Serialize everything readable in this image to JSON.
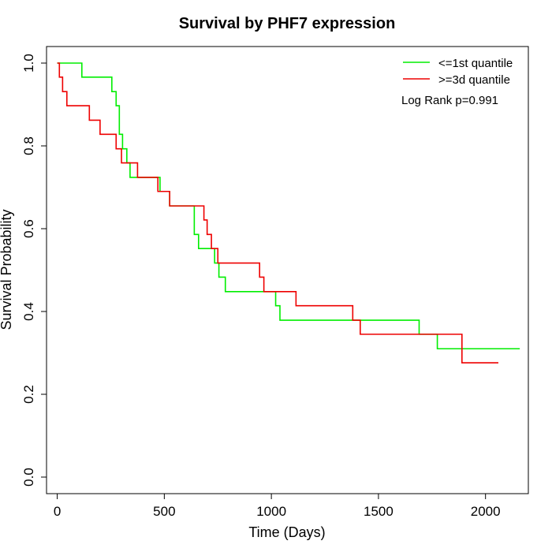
{
  "chart_data": {
    "type": "line",
    "step": true,
    "title": "Survival by PHF7 expression",
    "xlabel": "Time (Days)",
    "ylabel": "Survival Probability",
    "xlim": [
      -50,
      2200
    ],
    "ylim": [
      -0.04,
      1.04
    ],
    "xticks": [
      0,
      500,
      1000,
      1500,
      2000
    ],
    "yticks": [
      0.0,
      0.2,
      0.4,
      0.6,
      0.8,
      1.0
    ],
    "xtick_labels": [
      "0",
      "500",
      "1000",
      "1500",
      "2000"
    ],
    "ytick_labels": [
      "0.0",
      "0.2",
      "0.4",
      "0.6",
      "0.8",
      "1.0"
    ],
    "grid": false,
    "legend_position": "top-right",
    "annotation": "Log Rank p=0.991",
    "series": [
      {
        "name": "<=1st quantile",
        "color": "#00ee00",
        "x": [
          0,
          115,
          255,
          275,
          290,
          305,
          325,
          340,
          360,
          480,
          525,
          640,
          660,
          735,
          755,
          785,
          1020,
          1040,
          1690,
          1775,
          2160
        ],
        "y": [
          1.0,
          0.966,
          0.931,
          0.897,
          0.828,
          0.793,
          0.759,
          0.724,
          0.724,
          0.69,
          0.655,
          0.586,
          0.552,
          0.517,
          0.483,
          0.448,
          0.414,
          0.379,
          0.345,
          0.31,
          0.31
        ]
      },
      {
        "name": ">=3d quantile",
        "color": "#ee0000",
        "x": [
          0,
          10,
          25,
          45,
          150,
          200,
          275,
          300,
          375,
          470,
          525,
          685,
          700,
          720,
          750,
          945,
          965,
          1115,
          1380,
          1415,
          1890,
          2060
        ],
        "y": [
          1.0,
          0.966,
          0.931,
          0.897,
          0.862,
          0.828,
          0.793,
          0.759,
          0.724,
          0.69,
          0.655,
          0.621,
          0.586,
          0.552,
          0.517,
          0.483,
          0.448,
          0.414,
          0.379,
          0.345,
          0.276,
          0.276
        ]
      }
    ]
  }
}
